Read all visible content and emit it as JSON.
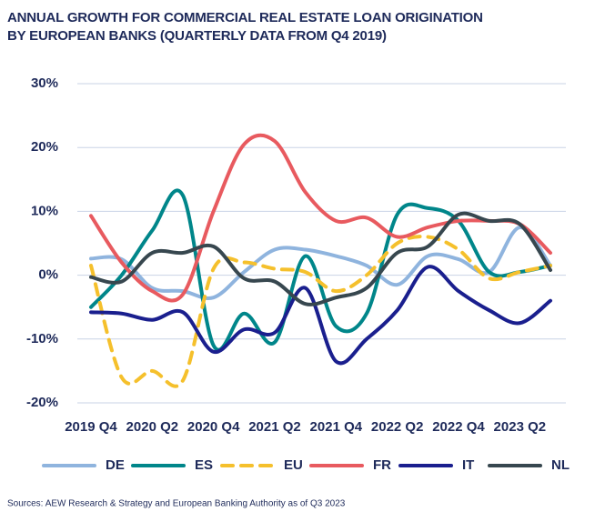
{
  "chart_data": {
    "type": "line",
    "title": "ANNUAL GROWTH FOR COMMERCIAL REAL ESTATE LOAN ORIGINATION BY EUROPEAN BANKS (QUARTERLY DATA FROM Q4 2019)",
    "categories": [
      "2019 Q4",
      null,
      "2020 Q2",
      null,
      "2020 Q4",
      null,
      "2021 Q2",
      null,
      "2021 Q4",
      null,
      "2022 Q2",
      null,
      "2022 Q4",
      null,
      "2023 Q2",
      null
    ],
    "series": [
      {
        "name": "DE",
        "color": "#8fb4de",
        "dash": false,
        "values": [
          2.6,
          2.5,
          -2,
          -2.5,
          -3.5,
          0.5,
          4,
          4,
          3,
          1.5,
          -1.5,
          3,
          2.5,
          0.5,
          7.5,
          1.5
        ]
      },
      {
        "name": "ES",
        "color": "#00868a",
        "dash": false,
        "values": [
          -5,
          0,
          7,
          12.5,
          -11,
          -6,
          -10.5,
          3,
          -8,
          -6,
          9.5,
          10.5,
          8.5,
          0.5,
          0.5,
          1.5
        ]
      },
      {
        "name": "EU",
        "color": "#f5c02c",
        "dash": true,
        "values": [
          1.5,
          -16,
          -15,
          -16.5,
          1,
          2,
          1,
          0.5,
          -2.5,
          0,
          5,
          6,
          4,
          -0.5,
          0.5,
          1.5
        ]
      },
      {
        "name": "FR",
        "color": "#e85a5f",
        "dash": false,
        "values": [
          9.3,
          2,
          -2.5,
          -3,
          10,
          20.5,
          21,
          13,
          8.5,
          9,
          6,
          7.5,
          8.5,
          8.5,
          8,
          3.5
        ]
      },
      {
        "name": "IT",
        "color": "#1a1f8e",
        "dash": false,
        "values": [
          -5.8,
          -6,
          -7,
          -5.8,
          -12,
          -8.5,
          -9,
          -2,
          -13.5,
          -10,
          -5.5,
          1.3,
          -2.5,
          -5.5,
          -7.5,
          -4
        ]
      },
      {
        "name": "NL",
        "color": "#37474f",
        "dash": false,
        "values": [
          -0.3,
          -1,
          3.5,
          3.5,
          4.5,
          -0.5,
          -1,
          -4.5,
          -3.5,
          -2,
          3.5,
          4.5,
          9.5,
          8.5,
          8,
          0.8
        ]
      }
    ],
    "ylim": [
      -20,
      30
    ],
    "yticks": [
      {
        "value": -20,
        "label": "-20%"
      },
      {
        "value": -10,
        "label": "-10%"
      },
      {
        "value": 0,
        "label": "0%"
      },
      {
        "value": 10,
        "label": "10%"
      },
      {
        "value": 20,
        "label": "20%"
      },
      {
        "value": 30,
        "label": "30%"
      }
    ],
    "grid": true,
    "legend": "bottom",
    "source": "Sources: AEW Research & Strategy and European Banking Authority as of Q3 2023"
  }
}
